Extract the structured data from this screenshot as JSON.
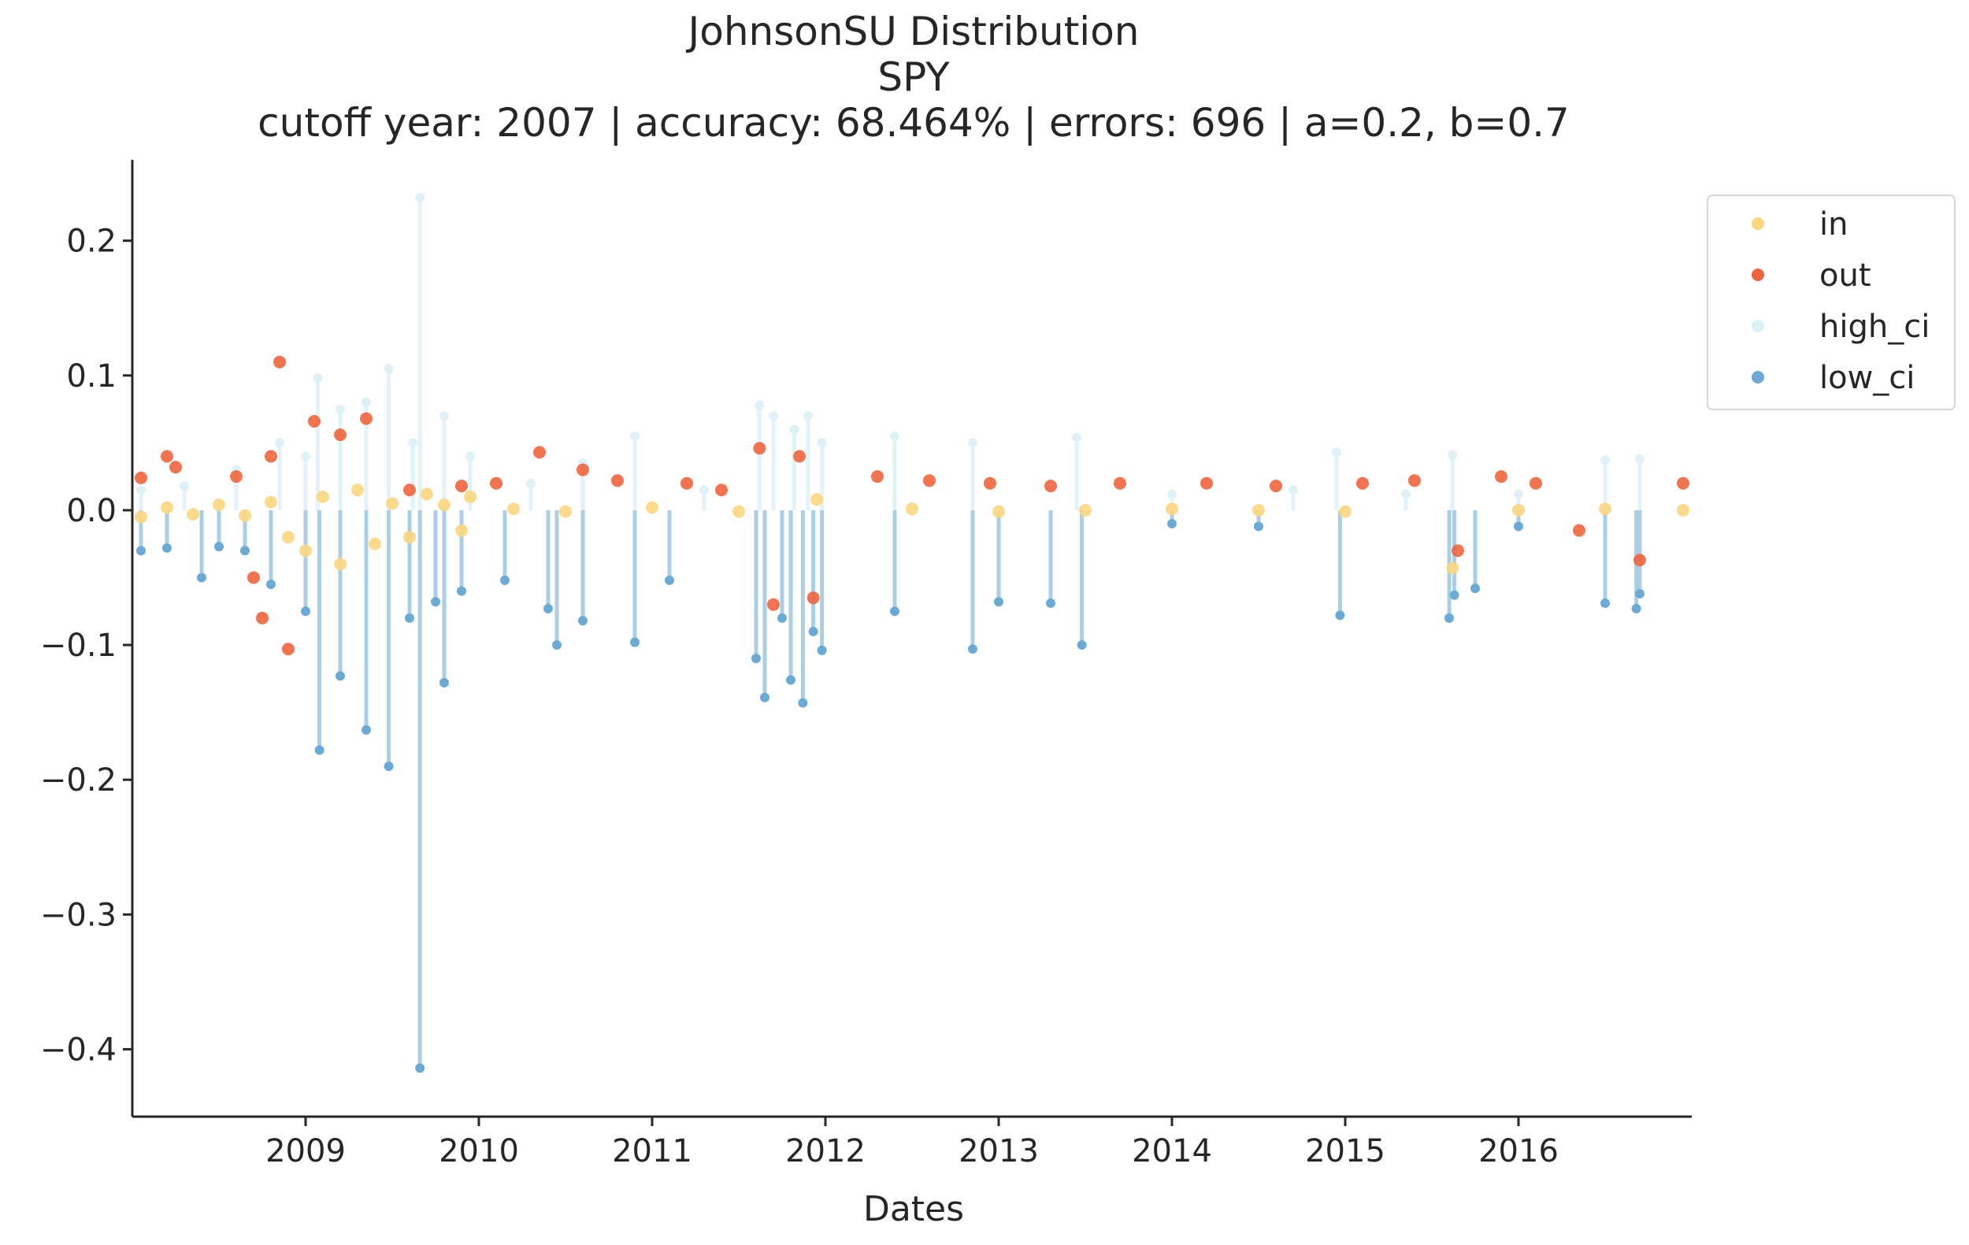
{
  "chart_data": {
    "type": "scatter",
    "title_lines": [
      "JohnsonSU Distribution",
      "SPY",
      "cutoff year: 2007 | accuracy: 68.464% | errors: 696 | a=0.2, b=0.7"
    ],
    "xlabel": "Dates",
    "ylabel": "",
    "xlim": [
      2008.0,
      2017.0
    ],
    "ylim": [
      -0.45,
      0.26
    ],
    "x_ticks": [
      2009,
      2010,
      2011,
      2012,
      2013,
      2014,
      2015,
      2016
    ],
    "x_tick_labels": [
      "2009",
      "2010",
      "2011",
      "2012",
      "2013",
      "2014",
      "2015",
      "2016"
    ],
    "y_ticks": [
      0.2,
      0.1,
      0.0,
      -0.1,
      -0.2,
      -0.3,
      -0.4
    ],
    "y_tick_labels": [
      "0.2",
      "0.1",
      "0.0",
      "−0.1",
      "−0.2",
      "−0.3",
      "−0.4"
    ],
    "grid": false,
    "legend_position": "top-right, outside axes",
    "series": [
      {
        "name": "in",
        "color": "#fbd77e",
        "style": "points",
        "x": [
          2008.05,
          2008.2,
          2008.35,
          2008.5,
          2008.65,
          2008.8,
          2008.9,
          2009.0,
          2009.1,
          2009.2,
          2009.3,
          2009.4,
          2009.5,
          2009.6,
          2009.7,
          2009.8,
          2009.9,
          2009.95,
          2010.2,
          2010.5,
          2011.0,
          2011.5,
          2011.95,
          2012.5,
          2013.0,
          2013.5,
          2014.0,
          2014.5,
          2015.0,
          2015.62,
          2016.0,
          2016.5,
          2016.95
        ],
        "values": [
          -0.005,
          0.002,
          -0.003,
          0.004,
          -0.004,
          0.006,
          -0.02,
          -0.03,
          0.01,
          -0.04,
          0.015,
          -0.025,
          0.005,
          -0.02,
          0.012,
          0.004,
          -0.015,
          0.01,
          0.001,
          -0.001,
          0.002,
          -0.001,
          0.008,
          0.001,
          -0.001,
          0.0,
          0.001,
          0.0,
          -0.001,
          -0.043,
          0.0,
          0.001,
          0.0
        ]
      },
      {
        "name": "out",
        "color": "#f0643c",
        "style": "points",
        "x": [
          2008.05,
          2008.2,
          2008.25,
          2008.6,
          2008.7,
          2008.75,
          2008.8,
          2008.85,
          2008.9,
          2009.05,
          2009.2,
          2009.35,
          2009.6,
          2009.9,
          2010.1,
          2010.35,
          2010.6,
          2010.8,
          2011.2,
          2011.4,
          2011.62,
          2011.7,
          2011.85,
          2011.93,
          2012.3,
          2012.6,
          2012.95,
          2013.3,
          2013.7,
          2014.2,
          2014.6,
          2015.1,
          2015.4,
          2015.65,
          2015.9,
          2016.1,
          2016.35,
          2016.7,
          2016.95
        ],
        "values": [
          0.024,
          0.04,
          0.032,
          0.025,
          -0.05,
          -0.08,
          0.04,
          0.11,
          -0.103,
          0.066,
          0.056,
          0.068,
          0.015,
          0.018,
          0.02,
          0.043,
          0.03,
          0.022,
          0.02,
          0.015,
          0.046,
          -0.07,
          0.04,
          -0.065,
          0.025,
          0.022,
          0.02,
          0.018,
          0.02,
          0.02,
          0.018,
          0.02,
          0.022,
          -0.03,
          0.025,
          0.02,
          -0.015,
          -0.037,
          0.02
        ]
      },
      {
        "name": "high_ci",
        "color": "#ddf1f6",
        "style": "stems",
        "x": [
          2008.05,
          2008.3,
          2008.6,
          2008.85,
          2009.0,
          2009.07,
          2009.2,
          2009.35,
          2009.48,
          2009.62,
          2009.66,
          2009.8,
          2009.95,
          2010.3,
          2010.6,
          2010.9,
          2011.3,
          2011.62,
          2011.7,
          2011.82,
          2011.9,
          2011.98,
          2012.4,
          2012.85,
          2013.45,
          2014.0,
          2014.7,
          2014.95,
          2015.35,
          2015.62,
          2016.0,
          2016.5,
          2016.7
        ],
        "values": [
          0.015,
          0.018,
          0.03,
          0.05,
          0.04,
          0.098,
          0.075,
          0.08,
          0.105,
          0.05,
          0.232,
          0.07,
          0.04,
          0.02,
          0.035,
          0.055,
          0.015,
          0.078,
          0.07,
          0.06,
          0.07,
          0.05,
          0.055,
          0.05,
          0.054,
          0.012,
          0.015,
          0.043,
          0.012,
          0.041,
          0.012,
          0.037,
          0.038
        ]
      },
      {
        "name": "low_ci",
        "color": "#6baad4",
        "style": "stems",
        "x": [
          2008.05,
          2008.2,
          2008.4,
          2008.5,
          2008.65,
          2008.8,
          2009.0,
          2009.08,
          2009.2,
          2009.35,
          2009.48,
          2009.6,
          2009.66,
          2009.75,
          2009.8,
          2009.9,
          2010.15,
          2010.4,
          2010.45,
          2010.6,
          2010.9,
          2011.1,
          2011.6,
          2011.65,
          2011.75,
          2011.8,
          2011.87,
          2011.93,
          2011.98,
          2012.4,
          2012.85,
          2013.0,
          2013.3,
          2013.48,
          2014.0,
          2014.5,
          2014.97,
          2015.6,
          2015.63,
          2015.75,
          2016.0,
          2016.5,
          2016.68,
          2016.7
        ],
        "values": [
          -0.03,
          -0.028,
          -0.05,
          -0.027,
          -0.03,
          -0.055,
          -0.075,
          -0.178,
          -0.123,
          -0.163,
          -0.19,
          -0.08,
          -0.414,
          -0.068,
          -0.128,
          -0.06,
          -0.052,
          -0.073,
          -0.1,
          -0.082,
          -0.098,
          -0.052,
          -0.11,
          -0.139,
          -0.08,
          -0.126,
          -0.143,
          -0.09,
          -0.104,
          -0.075,
          -0.103,
          -0.068,
          -0.069,
          -0.1,
          -0.01,
          -0.012,
          -0.078,
          -0.08,
          -0.063,
          -0.058,
          -0.012,
          -0.069,
          -0.073,
          -0.062
        ]
      }
    ]
  }
}
